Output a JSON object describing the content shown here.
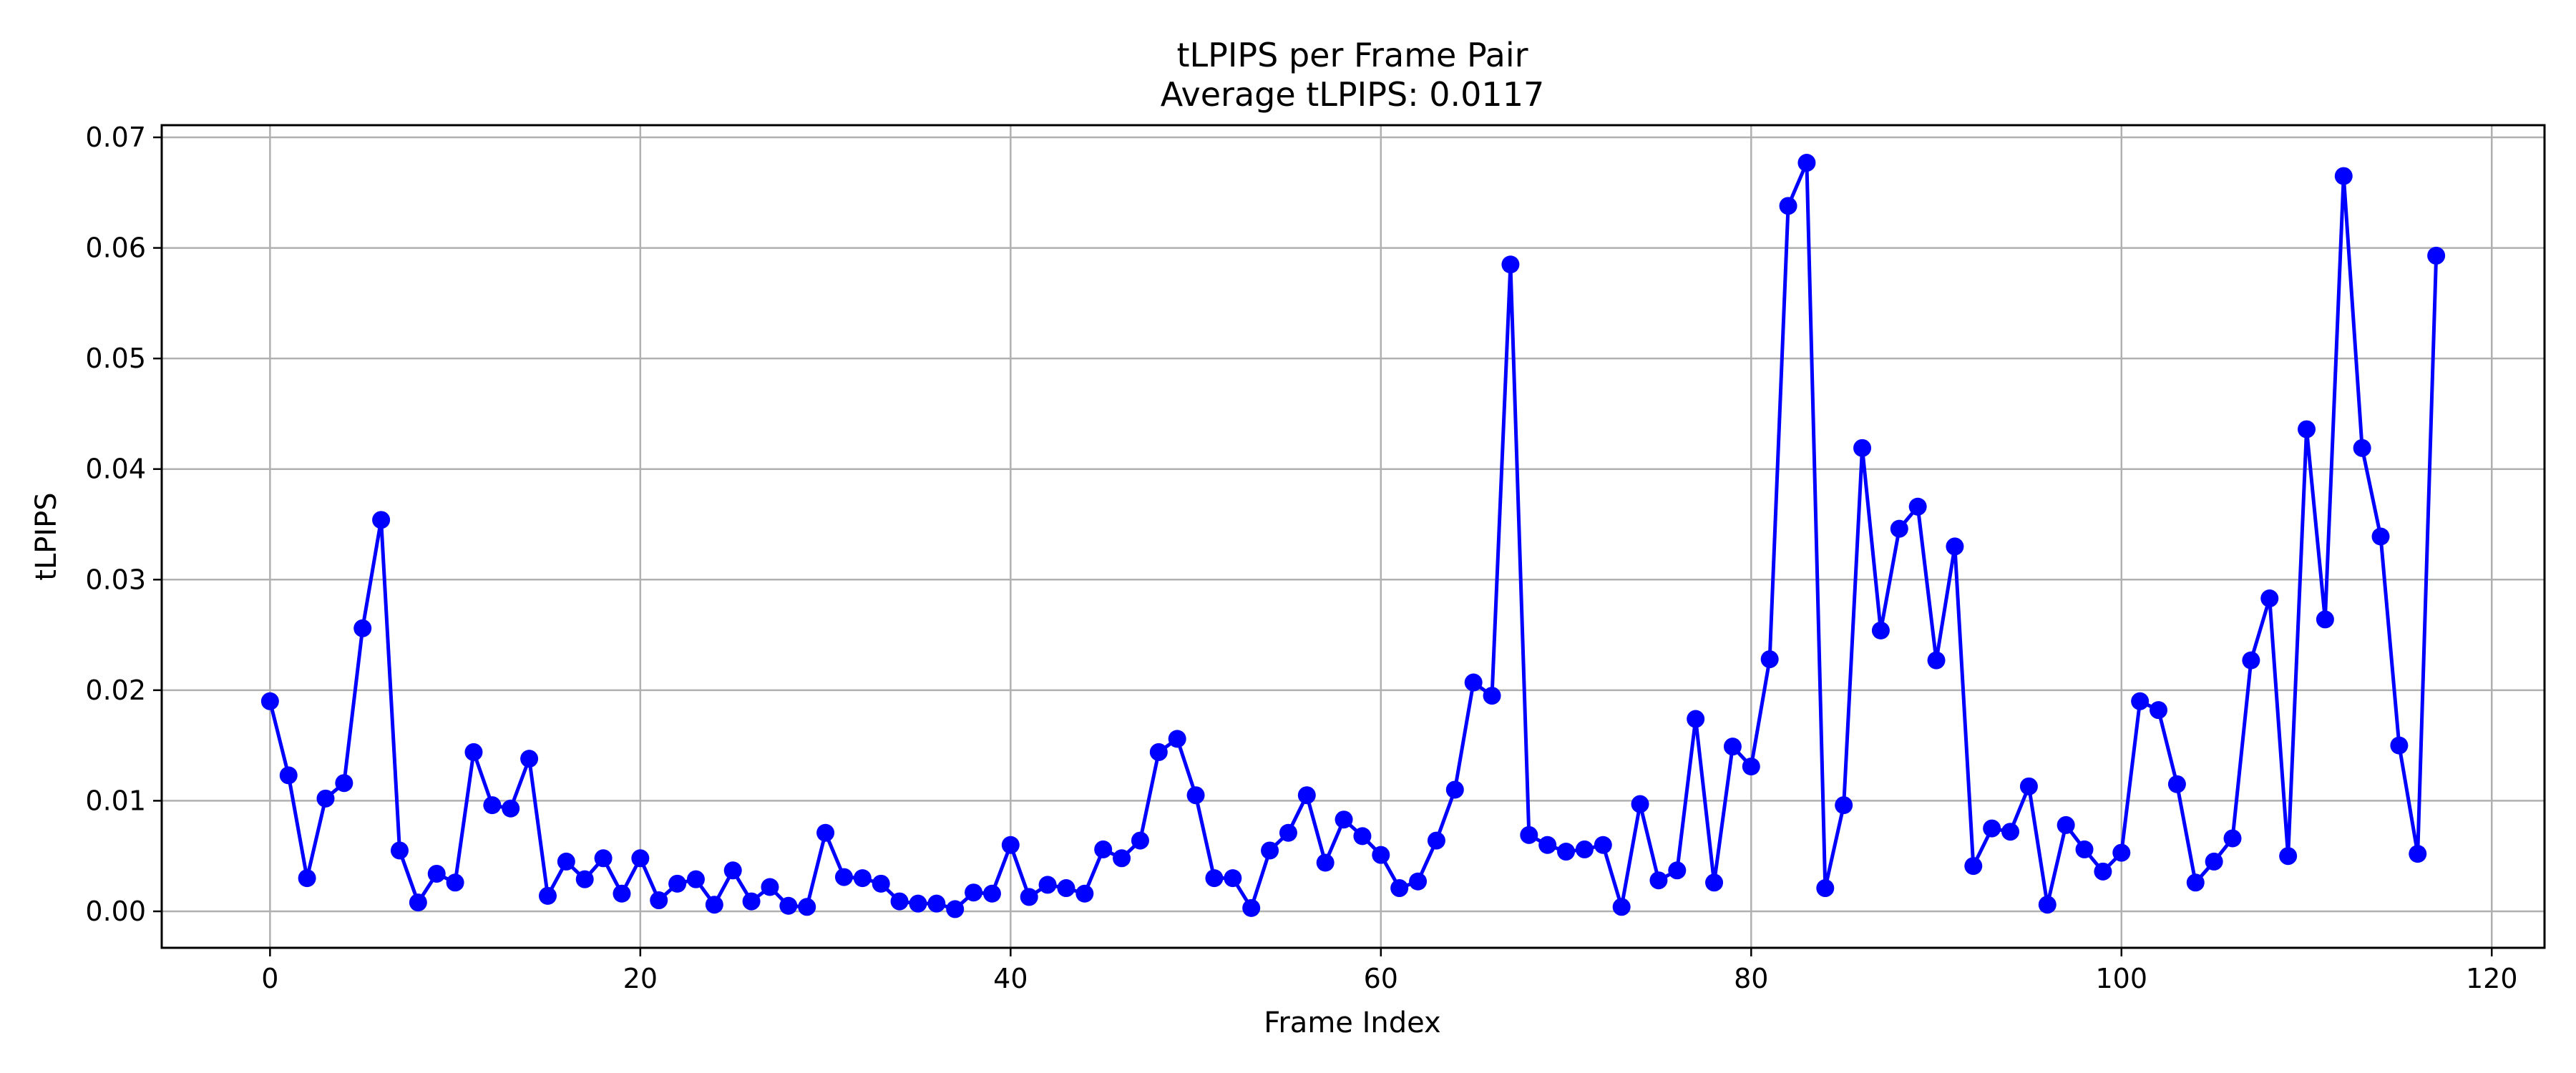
{
  "chart_data": {
    "type": "line",
    "title": "tLPIPS per Frame Pair",
    "subtitle": "Average tLPIPS: 0.0117",
    "xlabel": "Frame Index",
    "ylabel": "tLPIPS",
    "xlim": [
      -5.85,
      122.85
    ],
    "ylim": [
      -0.0033,
      0.0711
    ],
    "x_ticks": [
      0,
      20,
      40,
      60,
      80,
      100,
      120
    ],
    "x_tick_labels": [
      "0",
      "20",
      "40",
      "60",
      "80",
      "100",
      "120"
    ],
    "y_ticks": [
      0.0,
      0.01,
      0.02,
      0.03,
      0.04,
      0.05,
      0.06,
      0.07
    ],
    "y_tick_labels": [
      "0.00",
      "0.01",
      "0.02",
      "0.03",
      "0.04",
      "0.05",
      "0.06",
      "0.07"
    ],
    "grid": true,
    "legend": "none",
    "series": [
      {
        "color": "#0000ff",
        "marker": "circle",
        "x": [
          0,
          1,
          2,
          3,
          4,
          5,
          6,
          7,
          8,
          9,
          10,
          11,
          12,
          13,
          14,
          15,
          16,
          17,
          18,
          19,
          20,
          21,
          22,
          23,
          24,
          25,
          26,
          27,
          28,
          29,
          30,
          31,
          32,
          33,
          34,
          35,
          36,
          37,
          38,
          39,
          40,
          41,
          42,
          43,
          44,
          45,
          46,
          47,
          48,
          49,
          50,
          51,
          52,
          53,
          54,
          55,
          56,
          57,
          58,
          59,
          60,
          61,
          62,
          63,
          64,
          65,
          66,
          67,
          68,
          69,
          70,
          71,
          72,
          73,
          74,
          75,
          76,
          77,
          78,
          79,
          80,
          81,
          82,
          83,
          84,
          85,
          86,
          87,
          88,
          89,
          90,
          91,
          92,
          93,
          94,
          95,
          96,
          97,
          98,
          99,
          100,
          101,
          102,
          103,
          104,
          105,
          106,
          107,
          108,
          109,
          110,
          111,
          112,
          113,
          114,
          115,
          116,
          117
        ],
        "values": [
          0.019,
          0.0123,
          0.003,
          0.0102,
          0.0116,
          0.0256,
          0.0354,
          0.0055,
          0.0008,
          0.0034,
          0.0026,
          0.0144,
          0.0096,
          0.0093,
          0.0138,
          0.0014,
          0.0045,
          0.0029,
          0.0048,
          0.0016,
          0.0048,
          0.001,
          0.0025,
          0.0029,
          0.0006,
          0.0037,
          0.0009,
          0.0022,
          0.0005,
          0.0004,
          0.0071,
          0.0031,
          0.003,
          0.0025,
          0.0009,
          0.0007,
          0.0007,
          0.0002,
          0.0017,
          0.0016,
          0.006,
          0.0013,
          0.0024,
          0.0021,
          0.0016,
          0.0056,
          0.0048,
          0.0064,
          0.0144,
          0.0156,
          0.0105,
          0.003,
          0.003,
          0.0003,
          0.0055,
          0.0071,
          0.0105,
          0.0044,
          0.0083,
          0.0068,
          0.0051,
          0.0021,
          0.0027,
          0.0064,
          0.011,
          0.0207,
          0.0195,
          0.0585,
          0.0069,
          0.006,
          0.0054,
          0.0056,
          0.006,
          0.0004,
          0.0097,
          0.0028,
          0.0037,
          0.0174,
          0.0026,
          0.0149,
          0.0131,
          0.0228,
          0.0638,
          0.0677,
          0.0021,
          0.0096,
          0.0419,
          0.0254,
          0.0346,
          0.0366,
          0.0227,
          0.033,
          0.0041,
          0.0075,
          0.0072,
          0.0113,
          0.0006,
          0.0078,
          0.0056,
          0.0036,
          0.0053,
          0.019,
          0.0182,
          0.0115,
          0.0026,
          0.0045,
          0.0066,
          0.0227,
          0.0283,
          0.005,
          0.0436,
          0.0264,
          0.0665,
          0.0419,
          0.0339,
          0.015,
          0.0052,
          0.0593
        ]
      }
    ]
  }
}
